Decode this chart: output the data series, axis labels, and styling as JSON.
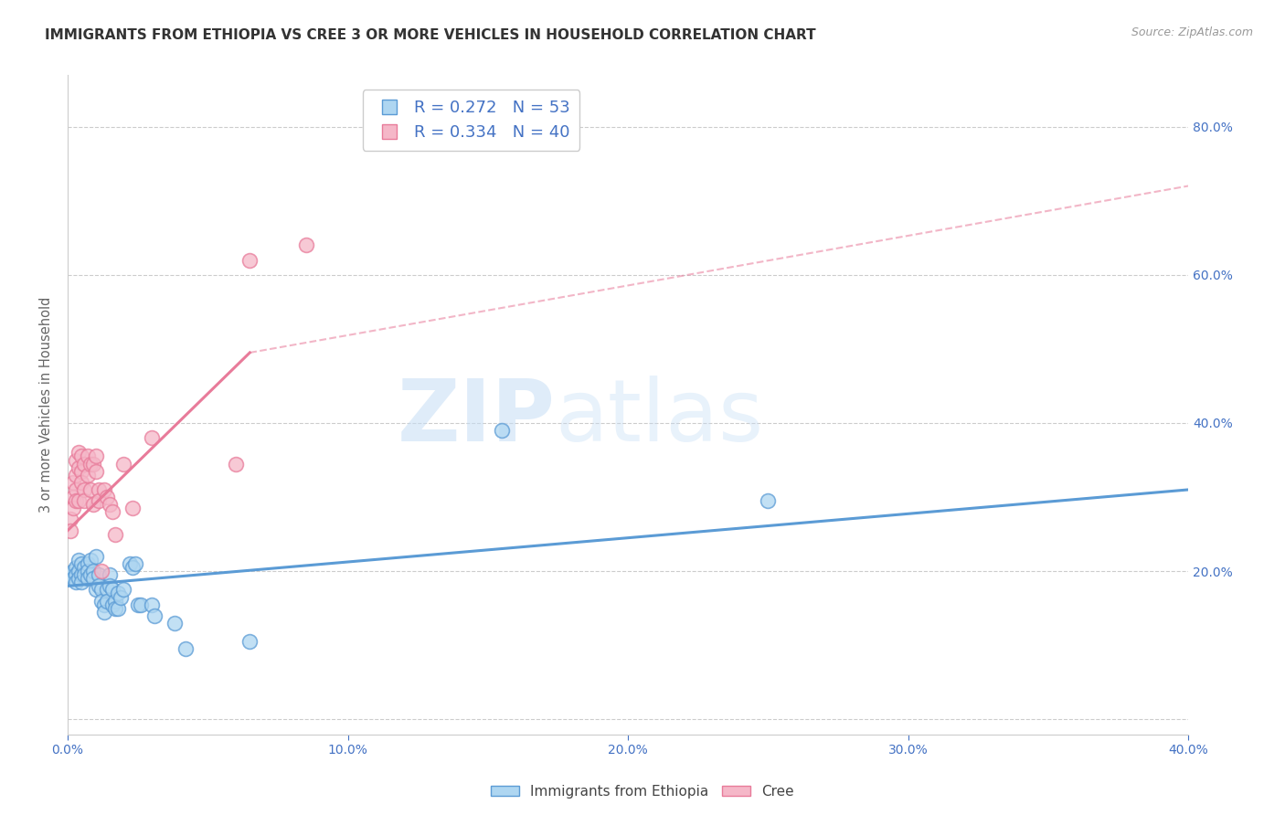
{
  "title": "IMMIGRANTS FROM ETHIOPIA VS CREE 3 OR MORE VEHICLES IN HOUSEHOLD CORRELATION CHART",
  "source": "Source: ZipAtlas.com",
  "ylabel": "3 or more Vehicles in Household",
  "xlim": [
    0.0,
    0.4
  ],
  "ylim": [
    -0.02,
    0.87
  ],
  "yticks": [
    0.0,
    0.2,
    0.4,
    0.6,
    0.8
  ],
  "xticks": [
    0.0,
    0.1,
    0.2,
    0.3,
    0.4
  ],
  "blue_scatter": [
    [
      0.001,
      0.195
    ],
    [
      0.002,
      0.2
    ],
    [
      0.002,
      0.19
    ],
    [
      0.003,
      0.205
    ],
    [
      0.003,
      0.195
    ],
    [
      0.003,
      0.185
    ],
    [
      0.004,
      0.215
    ],
    [
      0.004,
      0.2
    ],
    [
      0.004,
      0.19
    ],
    [
      0.005,
      0.21
    ],
    [
      0.005,
      0.195
    ],
    [
      0.005,
      0.185
    ],
    [
      0.006,
      0.205
    ],
    [
      0.006,
      0.195
    ],
    [
      0.007,
      0.21
    ],
    [
      0.007,
      0.2
    ],
    [
      0.007,
      0.19
    ],
    [
      0.008,
      0.215
    ],
    [
      0.008,
      0.195
    ],
    [
      0.009,
      0.2
    ],
    [
      0.009,
      0.19
    ],
    [
      0.01,
      0.22
    ],
    [
      0.01,
      0.175
    ],
    [
      0.011,
      0.195
    ],
    [
      0.011,
      0.18
    ],
    [
      0.012,
      0.175
    ],
    [
      0.012,
      0.16
    ],
    [
      0.013,
      0.155
    ],
    [
      0.013,
      0.145
    ],
    [
      0.014,
      0.175
    ],
    [
      0.014,
      0.16
    ],
    [
      0.015,
      0.195
    ],
    [
      0.015,
      0.18
    ],
    [
      0.016,
      0.175
    ],
    [
      0.016,
      0.155
    ],
    [
      0.017,
      0.16
    ],
    [
      0.017,
      0.15
    ],
    [
      0.018,
      0.17
    ],
    [
      0.018,
      0.15
    ],
    [
      0.019,
      0.165
    ],
    [
      0.02,
      0.175
    ],
    [
      0.022,
      0.21
    ],
    [
      0.023,
      0.205
    ],
    [
      0.024,
      0.21
    ],
    [
      0.025,
      0.155
    ],
    [
      0.026,
      0.155
    ],
    [
      0.03,
      0.155
    ],
    [
      0.031,
      0.14
    ],
    [
      0.038,
      0.13
    ],
    [
      0.042,
      0.095
    ],
    [
      0.065,
      0.105
    ],
    [
      0.155,
      0.39
    ],
    [
      0.25,
      0.295
    ]
  ],
  "pink_scatter": [
    [
      0.001,
      0.27
    ],
    [
      0.001,
      0.255
    ],
    [
      0.002,
      0.3
    ],
    [
      0.002,
      0.285
    ],
    [
      0.002,
      0.32
    ],
    [
      0.003,
      0.35
    ],
    [
      0.003,
      0.33
    ],
    [
      0.003,
      0.31
    ],
    [
      0.003,
      0.295
    ],
    [
      0.004,
      0.36
    ],
    [
      0.004,
      0.34
    ],
    [
      0.004,
      0.295
    ],
    [
      0.005,
      0.355
    ],
    [
      0.005,
      0.335
    ],
    [
      0.005,
      0.32
    ],
    [
      0.006,
      0.345
    ],
    [
      0.006,
      0.31
    ],
    [
      0.006,
      0.295
    ],
    [
      0.007,
      0.355
    ],
    [
      0.007,
      0.33
    ],
    [
      0.008,
      0.345
    ],
    [
      0.008,
      0.31
    ],
    [
      0.009,
      0.345
    ],
    [
      0.009,
      0.29
    ],
    [
      0.01,
      0.355
    ],
    [
      0.01,
      0.335
    ],
    [
      0.011,
      0.31
    ],
    [
      0.011,
      0.295
    ],
    [
      0.012,
      0.2
    ],
    [
      0.013,
      0.31
    ],
    [
      0.014,
      0.3
    ],
    [
      0.015,
      0.29
    ],
    [
      0.016,
      0.28
    ],
    [
      0.017,
      0.25
    ],
    [
      0.02,
      0.345
    ],
    [
      0.023,
      0.285
    ],
    [
      0.03,
      0.38
    ],
    [
      0.06,
      0.345
    ],
    [
      0.065,
      0.62
    ],
    [
      0.085,
      0.64
    ]
  ],
  "blue_line": {
    "x0": 0.0,
    "x1": 0.4,
    "y0": 0.18,
    "y1": 0.31
  },
  "pink_solid_line": {
    "x0": 0.0,
    "x1": 0.065,
    "y0": 0.255,
    "y1": 0.495
  },
  "pink_dashed_line": {
    "x0": 0.065,
    "x1": 0.4,
    "y0": 0.495,
    "y1": 0.72
  },
  "watermark_zip": "ZIP",
  "watermark_atlas": "atlas",
  "blue_color": "#5b9bd5",
  "blue_scatter_fill": "#aed6f1",
  "pink_color": "#e87b9a",
  "pink_scatter_fill": "#f5b7c8",
  "title_fontsize": 11,
  "axis_color": "#4472c4",
  "background_color": "#ffffff",
  "grid_color": "#cccccc"
}
